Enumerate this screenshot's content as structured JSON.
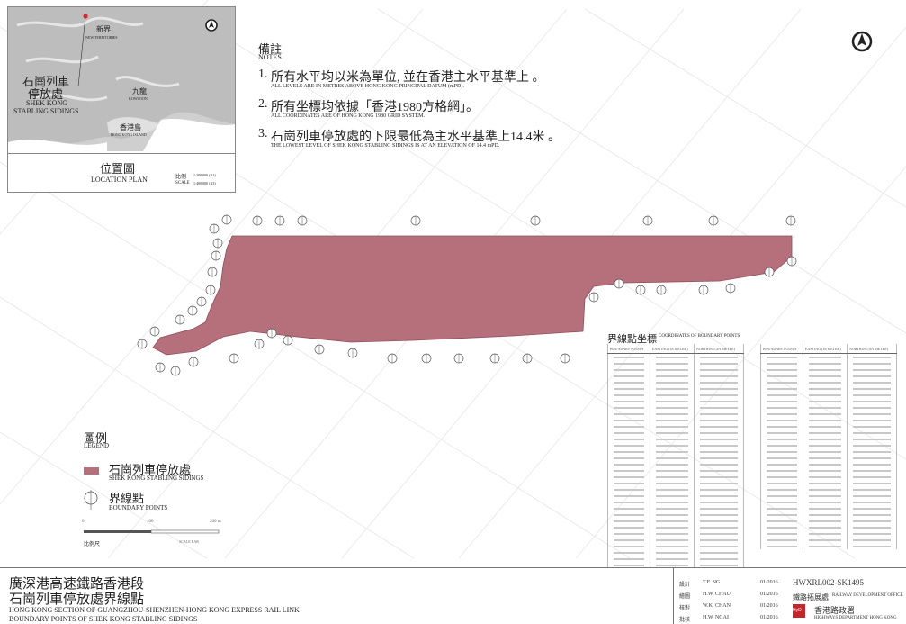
{
  "location_plan": {
    "labels": {
      "new_territories_zh": "新界",
      "new_territories_en": "NEW TERRITORIES",
      "kowloon_zh": "九龍",
      "kowloon_en": "KOWLOON",
      "hk_island_zh": "香港島",
      "hk_island_en": "HONG KONG ISLAND",
      "site_zh_1": "石崗列車",
      "site_zh_2": "停放處",
      "site_en_1": "SHEK KONG",
      "site_en_2": "STABLING SIDINGS"
    },
    "title_zh": "位置圖",
    "title_en": "LOCATION PLAN",
    "scale_zh": "比例",
    "scale_en": "SCALE",
    "scale_a1": "1:200 000 (A1)",
    "scale_a3": "1:400 000 (A3)"
  },
  "notes": {
    "heading_zh": "備註",
    "heading_en": "NOTES",
    "items": [
      {
        "num": "1.",
        "zh": "所有水平均以米為單位, 並在香港主水平基準上 。",
        "en": "ALL LEVELS ARE IN METRES ABOVE HONG KONG PRINCIPAL DATUM (mPD)."
      },
      {
        "num": "2.",
        "zh": "所有坐標均依據「香港1980方格網」。",
        "en": "ALL COORDINATES ARE OF HONG KONG 1980 GRID SYSTEM."
      },
      {
        "num": "3.",
        "zh": "石崗列車停放處的下限最低為主水平基準上14.4米 。",
        "en": "THE LOWEST LEVEL OF SHEK KONG STABLING SIDINGS IS AT AN ELEVATION OF 14.4 mPD."
      }
    ]
  },
  "legend": {
    "title_zh": "圖例",
    "title_en": "LEGEND",
    "sidings_zh": "石崗列車停放處",
    "sidings_en": "SHEK KONG STABLING SIDINGS",
    "sidings_color": "#b5707c",
    "bp_zh": "界線點",
    "bp_en": "BOUNDARY POINTS",
    "scale_zh": "比例尺",
    "scale_en": "SCALE BAR",
    "scale_ticks": [
      "0",
      "100",
      "200 m"
    ]
  },
  "coords": {
    "title_zh": "界線點坐標",
    "title_en": "COORDINATES OF BOUNDARY POINTS",
    "columns": [
      "BOUNDARY POINTS",
      "EASTING (IN METRE)",
      "NORTHING (IN METRE)"
    ]
  },
  "titleblock": {
    "title_zh_1": "廣深港高速鐵路香港段",
    "title_zh_2": "石崗列車停放處界線點",
    "title_en_1": "HONG KONG SECTION OF GUANGZHOU-SHENZHEN-HONG KONG EXPRESS RAIL LINK",
    "title_en_2": "BOUNDARY POINTS OF SHEK KONG STABLING SIDINGS",
    "rows": [
      {
        "role": "設計",
        "name": "T.F. NG",
        "date": "01/2016"
      },
      {
        "role": "繪圖",
        "name": "H.W. CHAU",
        "date": "01/2016"
      },
      {
        "role": "核對",
        "name": "W.K. CHAN",
        "date": "01/2016"
      },
      {
        "role": "批核",
        "name": "H.W. NGAI",
        "date": "01/2016"
      }
    ],
    "drawing_no": "HWXRL002-SK1495",
    "office_zh": "鐵路拓展處",
    "office_en": "RAILWAY DEVELOPMENT OFFICE",
    "dept_zh": "香港路政署",
    "dept_en": "HIGHWAYS DEPARTMENT HONG KONG",
    "logo_text": "HyD"
  }
}
